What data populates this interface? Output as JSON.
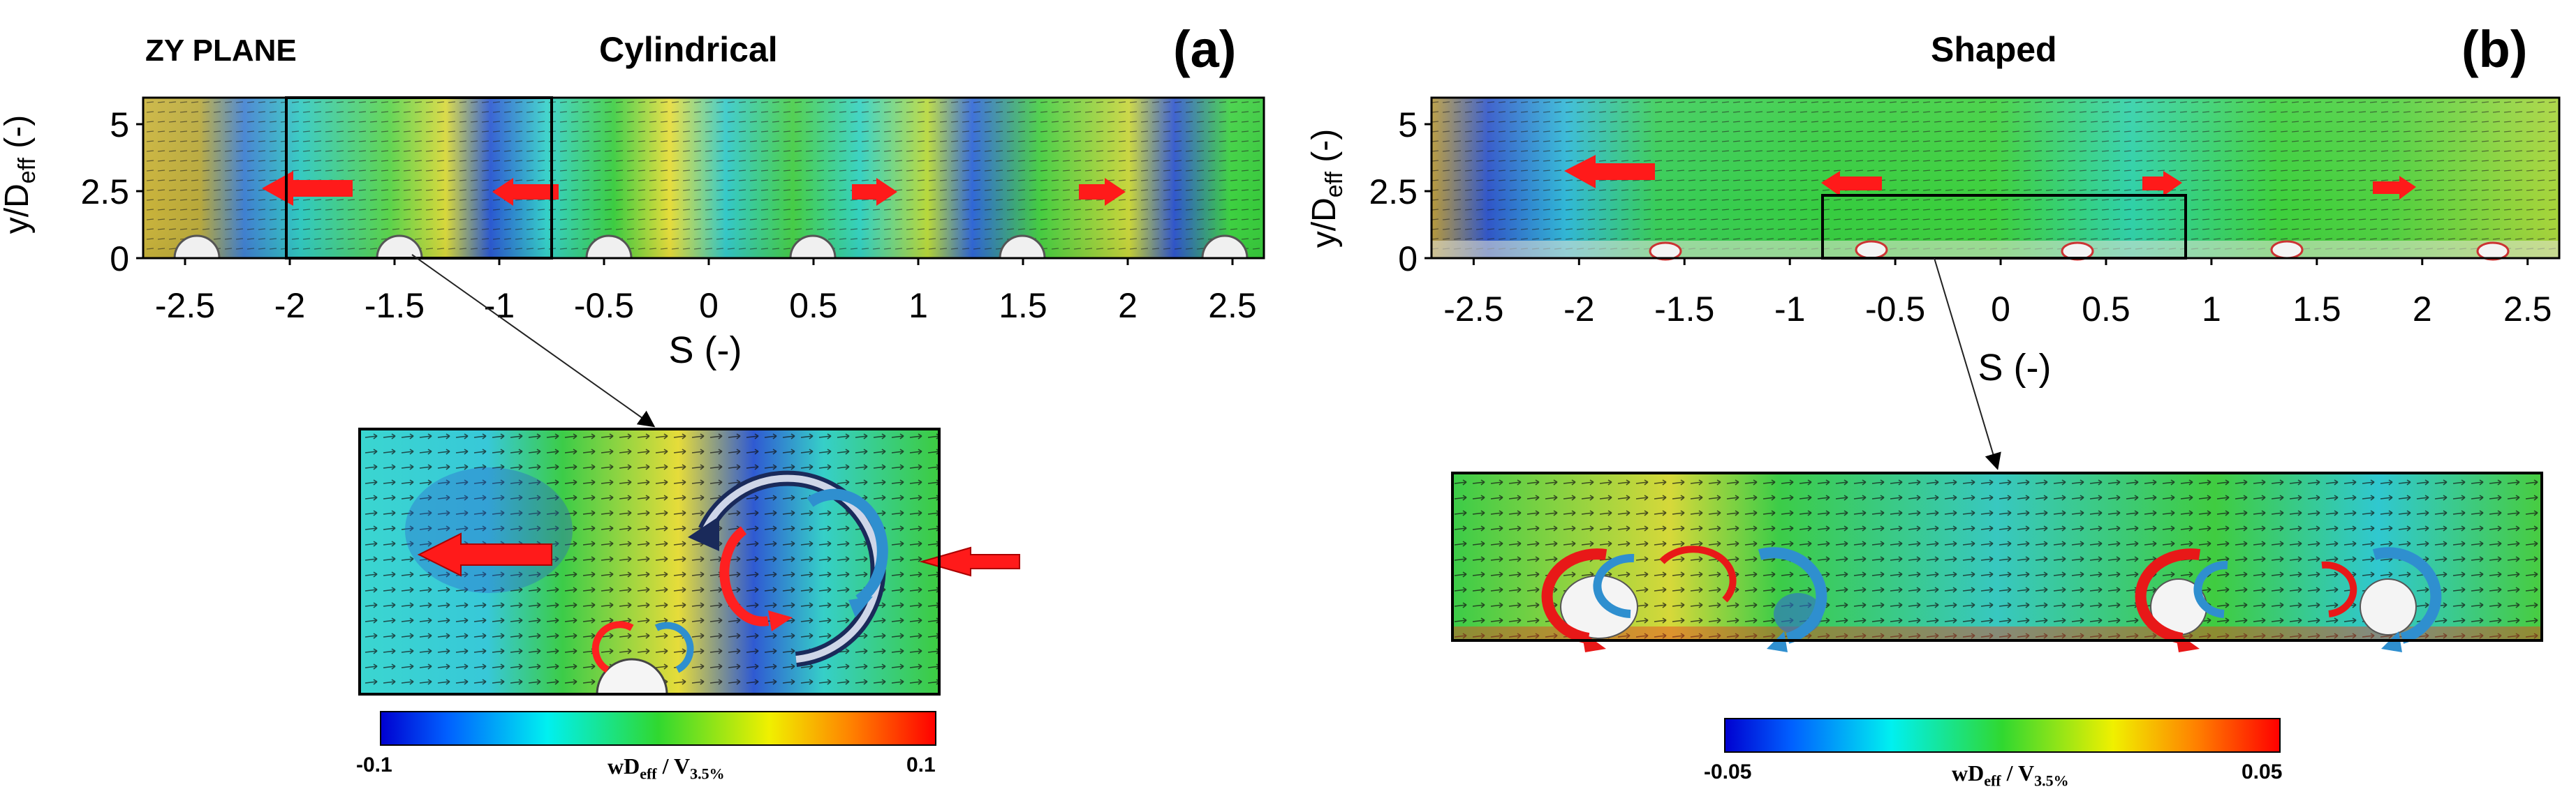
{
  "figure": {
    "plane_label": "ZY PLANE",
    "panels": [
      {
        "id": "a",
        "letter": "(a)",
        "title": "Cylindrical",
        "xlabel": "S (-)",
        "ylabel": "y/D",
        "ylabel_sub": "eff",
        "ylabel_unit": " (-)",
        "xticks": [
          "-2.5",
          "-2",
          "-1.5",
          "-1",
          "-0.5",
          "0",
          "0.5",
          "1",
          "1.5",
          "2",
          "2.5"
        ],
        "xlim": [
          -2.7,
          2.65
        ],
        "yticks": [
          "0",
          "2.5",
          "5"
        ],
        "ylim": [
          0,
          6
        ],
        "inset_range_s": [
          -2,
          -0.75
        ],
        "colorbar": {
          "min_label": "-0.1",
          "max_label": "0.1",
          "title_main": "wD",
          "title_eff": "eff",
          "title_slash": " / V",
          "title_sub": "3.5%"
        }
      },
      {
        "id": "b",
        "letter": "(b)",
        "title": "Shaped",
        "xlabel": "S (-)",
        "ylabel": "y/D",
        "ylabel_sub": "eff",
        "ylabel_unit": " (-)",
        "xticks": [
          "-2.5",
          "-2",
          "-1.5",
          "-1",
          "-0.5",
          "0",
          "0.5",
          "1",
          "1.5",
          "2",
          "2.5"
        ],
        "xlim": [
          -2.7,
          2.65
        ],
        "yticks": [
          "0",
          "2.5",
          "5"
        ],
        "ylim": [
          0,
          6
        ],
        "inset_range_s": [
          -0.85,
          0.85
        ],
        "colorbar": {
          "min_label": "-0.05",
          "max_label": "0.05",
          "title_main": "wD",
          "title_eff": "eff",
          "title_slash": " / V",
          "title_sub": "3.5%"
        }
      }
    ]
  },
  "colors": {
    "field_green": "#2ec83a",
    "cyan": "#33d6d0",
    "blue": "#2244cc",
    "yellow": "#e8e03a",
    "red": "#ee1c1c",
    "frame": "#000000",
    "arrow_red": "#ff1a1a",
    "vortex_blue": "#2f8fcf",
    "vortex_dark": "#1a2a5a"
  }
}
